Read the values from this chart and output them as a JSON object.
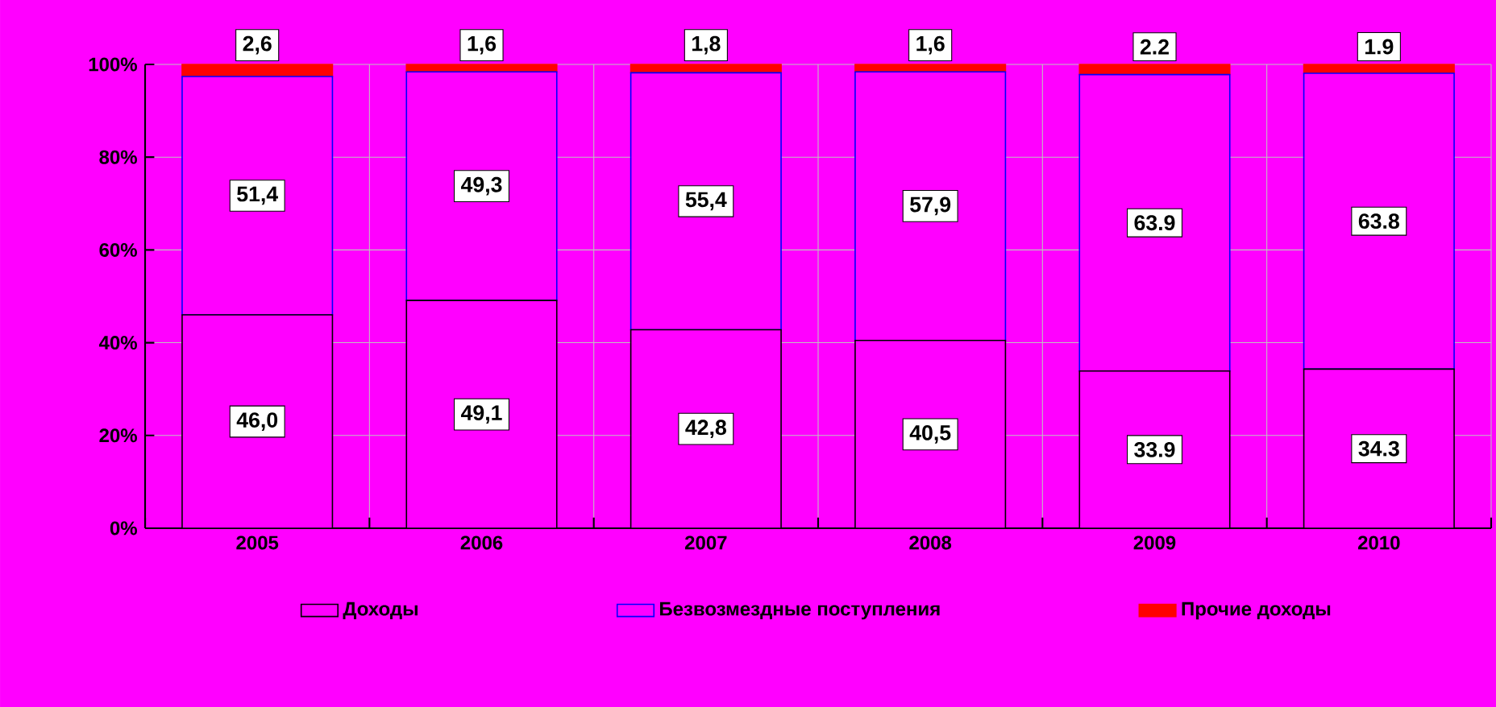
{
  "chart_data": {
    "type": "bar",
    "stacked": true,
    "categories": [
      "2005",
      "2006",
      "2007",
      "2008",
      "2009",
      "2010"
    ],
    "series": [
      {
        "name": "Доходы",
        "color": "#000000",
        "values": [
          46.0,
          49.1,
          42.8,
          40.5,
          33.9,
          34.3
        ],
        "value_labels": [
          "46,0",
          "49,1",
          "42,8",
          "40,5",
          "33.9",
          "34.3"
        ]
      },
      {
        "name": "Безвозмездные поступления",
        "color": "#0000ff",
        "values": [
          51.4,
          49.3,
          55.4,
          57.9,
          63.9,
          63.8
        ],
        "value_labels": [
          "51,4",
          "49,3",
          "55,4",
          "57,9",
          "63.9",
          "63.8"
        ]
      },
      {
        "name": "Прочие доходы",
        "color": "#ff0000",
        "values": [
          2.6,
          1.6,
          1.8,
          1.6,
          2.2,
          1.9
        ],
        "value_labels": [
          "2,6",
          "1,6",
          "1,8",
          "1,6",
          "2.2",
          "1.9"
        ]
      }
    ],
    "ylim": [
      0,
      100
    ],
    "yticks": [
      {
        "value": 0,
        "label": "0%"
      },
      {
        "value": 20,
        "label": "20%"
      },
      {
        "value": 40,
        "label": "40%"
      },
      {
        "value": 60,
        "label": "60%"
      },
      {
        "value": 80,
        "label": "80%"
      },
      {
        "value": 100,
        "label": "100%"
      }
    ],
    "grid": true,
    "legend": "bottom"
  }
}
